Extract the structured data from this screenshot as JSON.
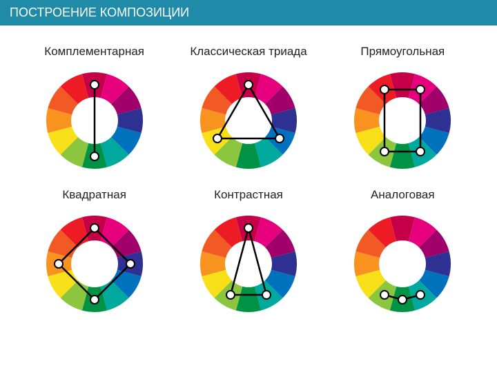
{
  "header": {
    "title": "ПОСТРОЕНИЕ КОМПОЗИЦИИ"
  },
  "colors": {
    "header_bg": "#1f8ba9",
    "header_text": "#ffffff",
    "page_bg": "#ffffff",
    "label": "#222222",
    "connector_stroke": "#000000",
    "marker_fill": "#ffffff",
    "marker_stroke": "#000000"
  },
  "wheel": {
    "outer_radius": 70,
    "inner_radius": 34,
    "segments": 12,
    "segment_colors": [
      "#c50048",
      "#e6007e",
      "#a1006b",
      "#2e3192",
      "#0071bc",
      "#00a99d",
      "#009245",
      "#8cc63f",
      "#f7e017",
      "#f7931e",
      "#f15a24",
      "#ed1c24"
    ],
    "start_angle_deg": -90,
    "marker_radius": 6,
    "marker_ring_r": 52,
    "connector_width": 2.5
  },
  "schemes": [
    {
      "label": "Комплементарная",
      "marker_indices": [
        0,
        6
      ],
      "connector": {
        "type": "line",
        "indices": [
          0,
          6
        ]
      }
    },
    {
      "label": "Классическая триада",
      "marker_indices": [
        0,
        4,
        8
      ],
      "connector": {
        "type": "polygon",
        "indices": [
          0,
          4,
          8
        ]
      }
    },
    {
      "label": "Прямоугольная",
      "marker_indices": [
        11,
        1,
        5,
        7
      ],
      "connector": {
        "type": "polygon",
        "indices": [
          11,
          1,
          5,
          7
        ]
      }
    },
    {
      "label": "Квадратная",
      "marker_indices": [
        0,
        3,
        6,
        9
      ],
      "connector": {
        "type": "polygon",
        "indices": [
          0,
          3,
          6,
          9
        ]
      }
    },
    {
      "label": "Контрастная",
      "marker_indices": [
        0,
        5,
        7
      ],
      "connector": {
        "type": "polygon",
        "indices": [
          0,
          5,
          7
        ]
      }
    },
    {
      "label": "Аналоговая",
      "marker_indices": [
        5,
        6,
        7
      ],
      "connector": {
        "type": "path",
        "indices": [
          5,
          6,
          7
        ]
      }
    }
  ],
  "layout": {
    "svg_size": 160,
    "grid_cols": 3,
    "grid_rows": 2,
    "label_fontsize": 17
  }
}
